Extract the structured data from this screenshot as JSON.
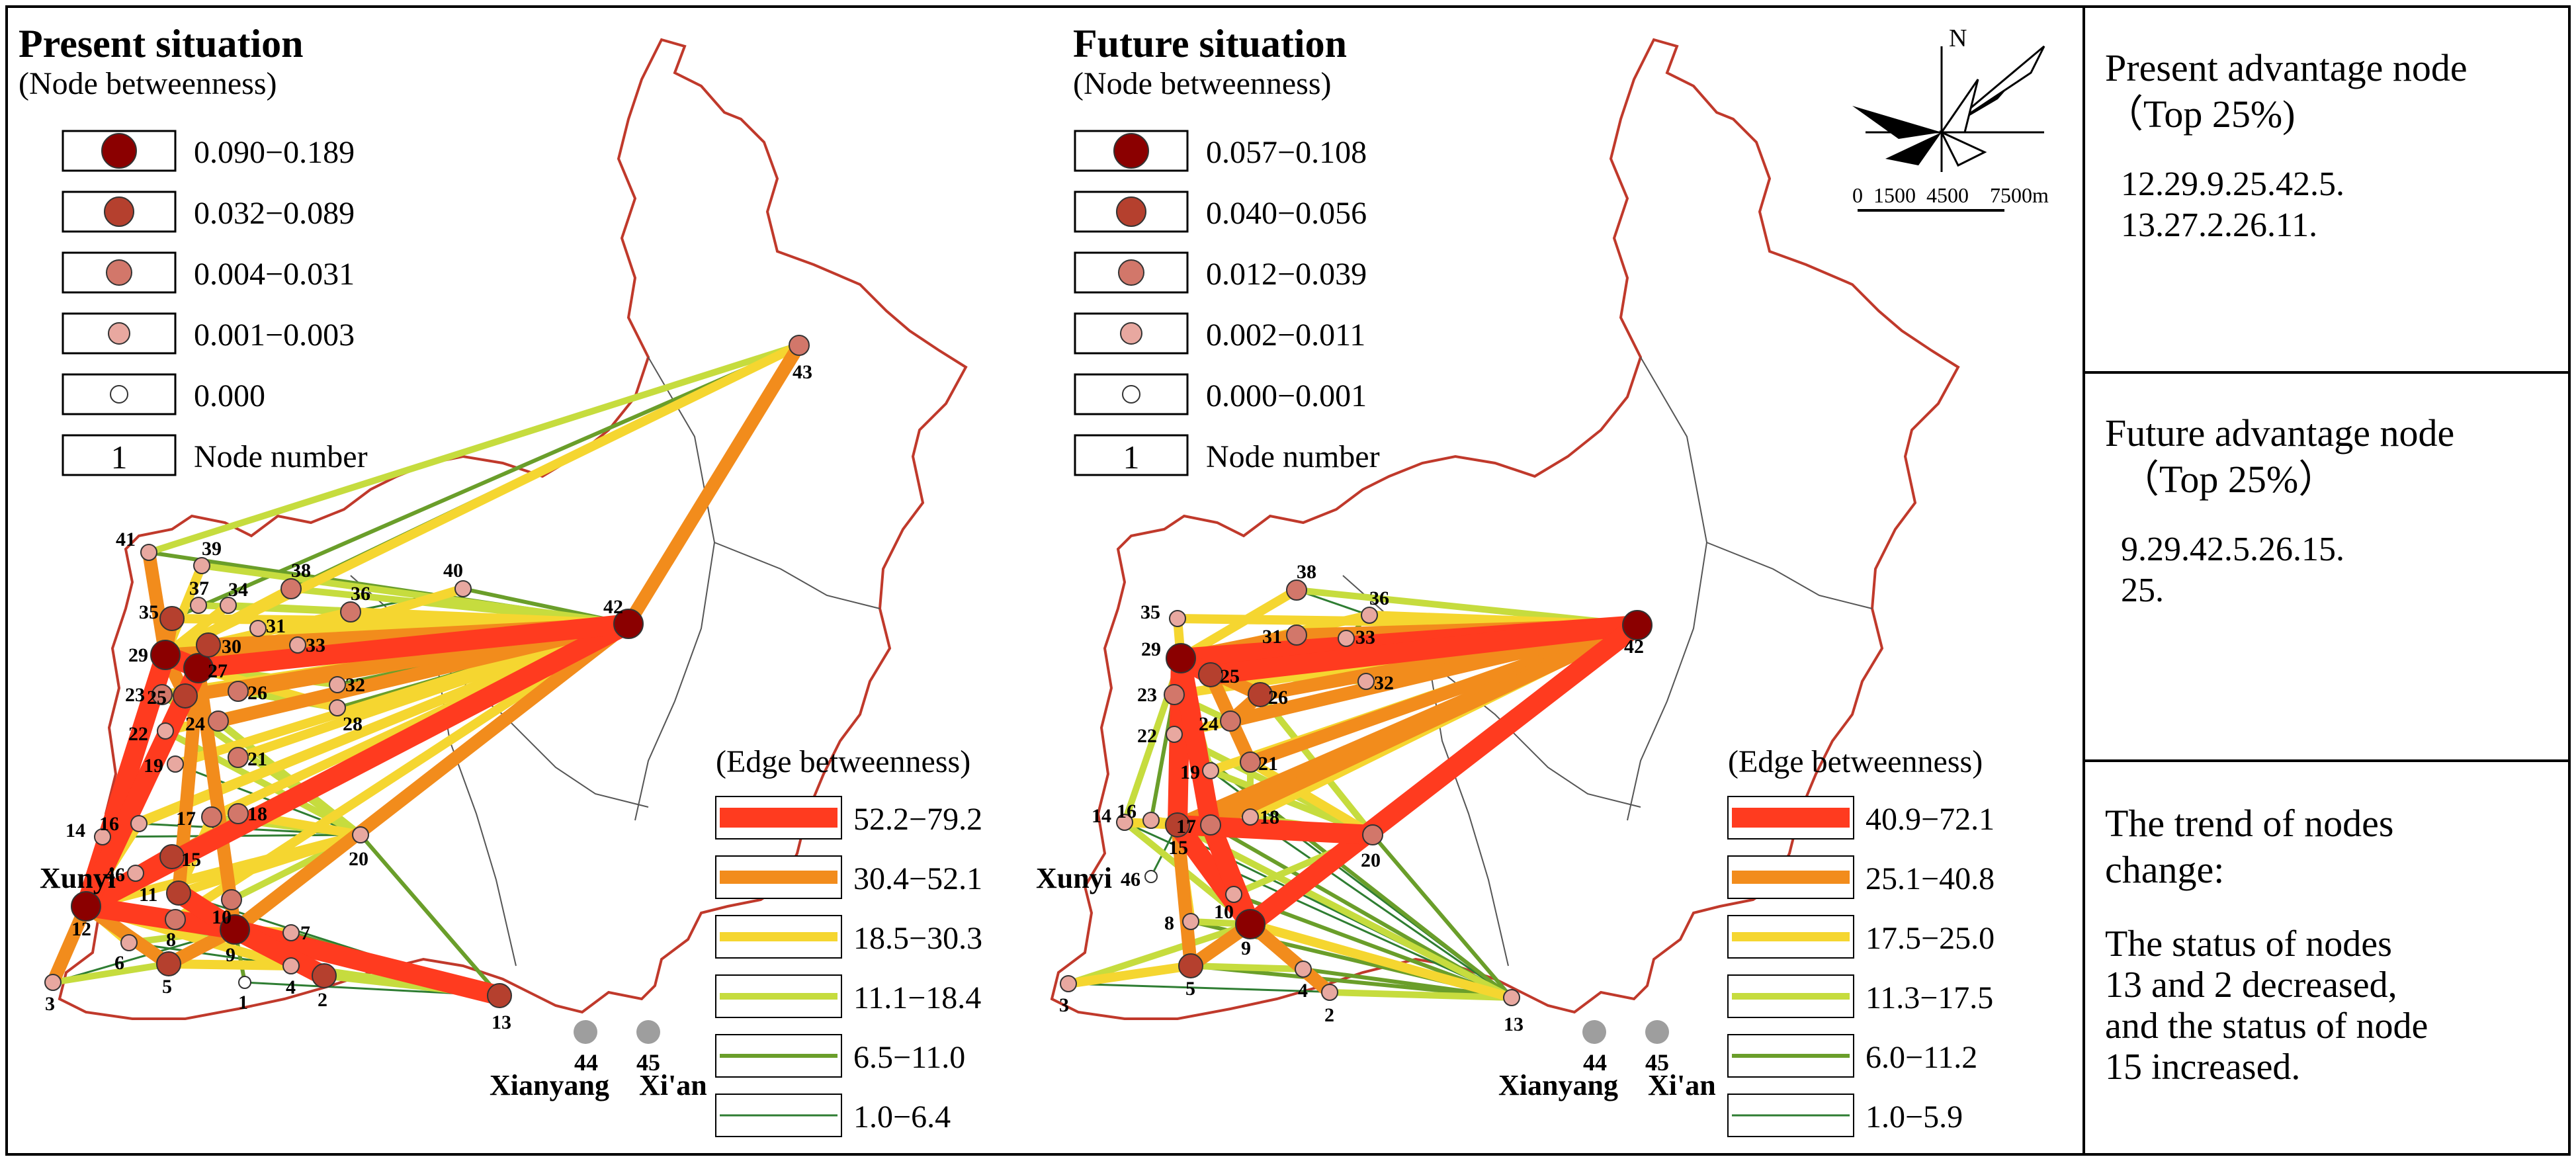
{
  "present": {
    "title": "Present situation",
    "node_subtitle": "(Node betweenness)",
    "node_legend": [
      "0.090−0.189",
      "0.032−0.089",
      "0.004−0.031",
      "0.001−0.003",
      "0.000"
    ],
    "node_number_sample": "1",
    "node_number_label": "Node number",
    "edge_subtitle": "(Edge betweenness)",
    "edge_legend": [
      "52.2−79.2",
      "30.4−52.1",
      "18.5−30.3",
      "11.1−18.4",
      "6.5−11.0",
      "1.0−6.4"
    ]
  },
  "future": {
    "title": "Future situation",
    "node_subtitle": "(Node betweenness)",
    "node_legend": [
      "0.057−0.108",
      "0.040−0.056",
      "0.012−0.039",
      "0.002−0.011",
      "0.000−0.001"
    ],
    "node_number_sample": "1",
    "node_number_label": "Node number",
    "edge_subtitle": "(Edge betweenness)",
    "edge_legend": [
      "40.9−72.1",
      "25.1−40.8",
      "17.5−25.0",
      "11.3−17.5",
      "6.0−11.2",
      "1.0−5.9"
    ]
  },
  "compass": {
    "north": "N",
    "scale": "0  1500  4500    7500m"
  },
  "places": {
    "xunyi": "Xunyi",
    "xianyang": "Xianyang",
    "xian": "Xi'an",
    "n44": "44",
    "n45": "45"
  },
  "side": {
    "present_title": "Present advantage node",
    "present_sub": "（Top 25%)",
    "present_nodes": [
      "12.29.9.25.42.5.",
      "13.27.2.26.11."
    ],
    "future_title": "Future advantage node",
    "future_sub": "（Top 25%）",
    "future_nodes": [
      "9.29.42.5.26.15.",
      "25."
    ],
    "trend_title": [
      "The trend of nodes",
      "change:"
    ],
    "trend_text": [
      "The status of nodes",
      "13 and 2 decreased,",
      "and the status of node",
      "15 increased."
    ]
  },
  "colors": {
    "boundary": "#c0392b",
    "class_colors": [
      "#8b0000",
      "#b5402e",
      "#d2776a",
      "#e8a8a0",
      "#ffffff"
    ],
    "edge_colors": [
      "#ff3b1f",
      "#f28c1c",
      "#f5d630",
      "#c6dc3e",
      "#6a9e2a",
      "#2e7d32"
    ]
  }
}
